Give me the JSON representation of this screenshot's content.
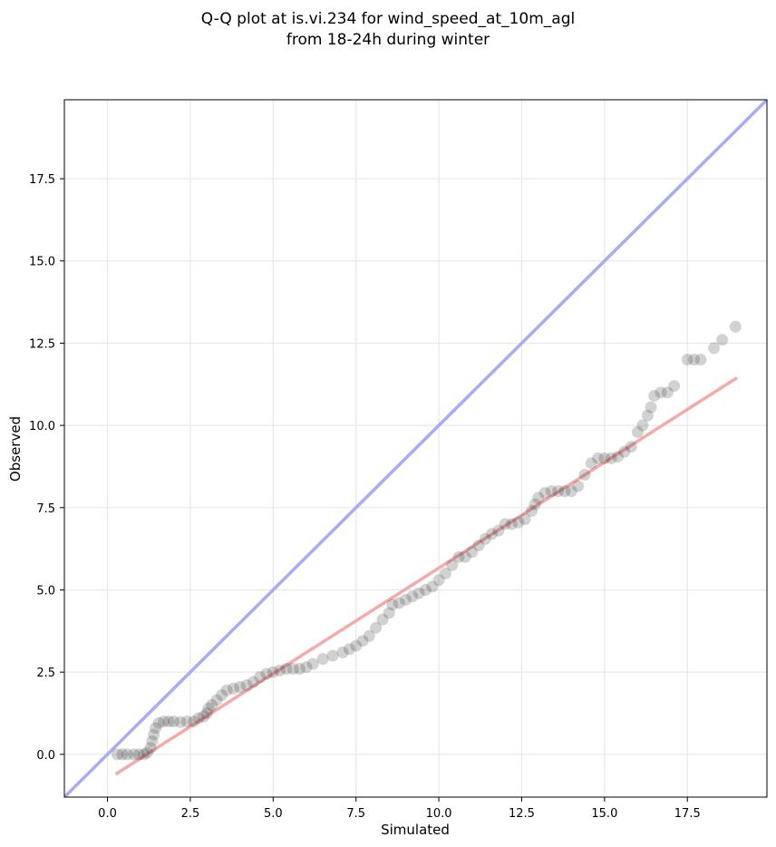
{
  "chart_data": {
    "type": "scatter",
    "title_lines": [
      "Q-Q plot at is.vi.234 for wind_speed_at_10m_agl",
      "from 18-24h during winter"
    ],
    "xlabel": "Simulated",
    "ylabel": "Observed",
    "xlim": [
      -1.3,
      19.9
    ],
    "ylim": [
      -1.3,
      19.9
    ],
    "xticks": [
      0.0,
      2.5,
      5.0,
      7.5,
      10.0,
      12.5,
      15.0,
      17.5
    ],
    "yticks": [
      0.0,
      2.5,
      5.0,
      7.5,
      10.0,
      12.5,
      15.0,
      17.5
    ],
    "grid": true,
    "colors": {
      "points": "#333333",
      "identity_line": "#aaaaf5",
      "fit_line": "#f5aaaa"
    },
    "identity_line": {
      "from": [
        -1.3,
        -1.3
      ],
      "to": [
        19.9,
        19.9
      ]
    },
    "fit_line": {
      "from": [
        0.25,
        -0.6
      ],
      "to": [
        19.0,
        11.45
      ]
    },
    "points": [
      [
        0.3,
        0.0
      ],
      [
        0.45,
        0.0
      ],
      [
        0.6,
        0.0
      ],
      [
        0.8,
        0.0
      ],
      [
        0.95,
        0.0
      ],
      [
        1.1,
        0.0
      ],
      [
        1.2,
        0.05
      ],
      [
        1.3,
        0.2
      ],
      [
        1.35,
        0.4
      ],
      [
        1.4,
        0.6
      ],
      [
        1.45,
        0.8
      ],
      [
        1.55,
        0.95
      ],
      [
        1.7,
        1.0
      ],
      [
        1.85,
        1.0
      ],
      [
        2.0,
        1.0
      ],
      [
        2.2,
        0.98
      ],
      [
        2.4,
        1.0
      ],
      [
        2.6,
        1.0
      ],
      [
        2.75,
        1.1
      ],
      [
        2.9,
        1.15
      ],
      [
        3.0,
        1.25
      ],
      [
        3.05,
        1.4
      ],
      [
        3.15,
        1.5
      ],
      [
        3.3,
        1.65
      ],
      [
        3.45,
        1.8
      ],
      [
        3.6,
        1.95
      ],
      [
        3.8,
        2.0
      ],
      [
        4.0,
        2.05
      ],
      [
        4.2,
        2.1
      ],
      [
        4.4,
        2.2
      ],
      [
        4.6,
        2.35
      ],
      [
        4.8,
        2.45
      ],
      [
        5.0,
        2.5
      ],
      [
        5.2,
        2.55
      ],
      [
        5.4,
        2.6
      ],
      [
        5.6,
        2.6
      ],
      [
        5.8,
        2.6
      ],
      [
        6.0,
        2.65
      ],
      [
        6.2,
        2.75
      ],
      [
        6.5,
        2.9
      ],
      [
        6.8,
        3.0
      ],
      [
        7.1,
        3.1
      ],
      [
        7.3,
        3.2
      ],
      [
        7.5,
        3.3
      ],
      [
        7.7,
        3.45
      ],
      [
        7.9,
        3.6
      ],
      [
        8.1,
        3.85
      ],
      [
        8.3,
        4.1
      ],
      [
        8.5,
        4.3
      ],
      [
        8.6,
        4.55
      ],
      [
        8.8,
        4.6
      ],
      [
        9.0,
        4.7
      ],
      [
        9.2,
        4.8
      ],
      [
        9.4,
        4.9
      ],
      [
        9.6,
        5.0
      ],
      [
        9.8,
        5.1
      ],
      [
        10.0,
        5.3
      ],
      [
        10.2,
        5.5
      ],
      [
        10.4,
        5.75
      ],
      [
        10.6,
        6.0
      ],
      [
        10.8,
        6.0
      ],
      [
        11.0,
        6.15
      ],
      [
        11.2,
        6.35
      ],
      [
        11.4,
        6.55
      ],
      [
        11.6,
        6.7
      ],
      [
        11.8,
        6.8
      ],
      [
        12.0,
        7.0
      ],
      [
        12.2,
        7.0
      ],
      [
        12.4,
        7.05
      ],
      [
        12.6,
        7.15
      ],
      [
        12.8,
        7.4
      ],
      [
        12.9,
        7.6
      ],
      [
        13.0,
        7.8
      ],
      [
        13.2,
        7.95
      ],
      [
        13.4,
        8.0
      ],
      [
        13.6,
        8.0
      ],
      [
        13.8,
        8.0
      ],
      [
        14.0,
        8.0
      ],
      [
        14.2,
        8.15
      ],
      [
        14.4,
        8.5
      ],
      [
        14.6,
        8.85
      ],
      [
        14.8,
        9.0
      ],
      [
        15.0,
        9.0
      ],
      [
        15.2,
        9.0
      ],
      [
        15.4,
        9.05
      ],
      [
        15.6,
        9.2
      ],
      [
        15.8,
        9.35
      ],
      [
        16.0,
        9.8
      ],
      [
        16.15,
        10.0
      ],
      [
        16.3,
        10.3
      ],
      [
        16.4,
        10.55
      ],
      [
        16.5,
        10.9
      ],
      [
        16.7,
        11.0
      ],
      [
        16.9,
        11.0
      ],
      [
        17.1,
        11.2
      ],
      [
        17.5,
        12.0
      ],
      [
        17.7,
        12.0
      ],
      [
        17.9,
        12.0
      ],
      [
        18.3,
        12.35
      ],
      [
        18.55,
        12.6
      ],
      [
        18.95,
        13.0
      ]
    ]
  }
}
